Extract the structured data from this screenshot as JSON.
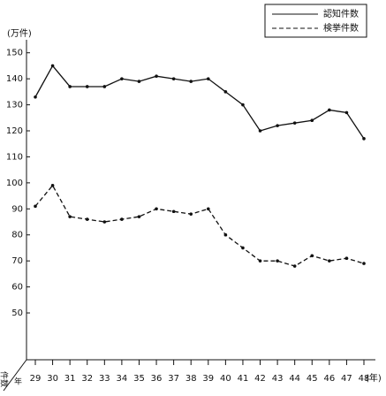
{
  "chart_data": {
    "type": "line",
    "y_unit": "(万件)",
    "x_unit": "(年)",
    "corner_labels": [
      "件数",
      "年"
    ],
    "categories": [
      "29",
      "30",
      "31",
      "32",
      "33",
      "34",
      "35",
      "36",
      "37",
      "38",
      "39",
      "40",
      "41",
      "42",
      "43",
      "44",
      "45",
      "46",
      "47",
      "48"
    ],
    "series": [
      {
        "name": "認知件数",
        "color": "#111111",
        "dash": "solid",
        "values": [
          133,
          145,
          137,
          137,
          137,
          140,
          139,
          141,
          140,
          139,
          140,
          135,
          130,
          120,
          122,
          123,
          124,
          128,
          127,
          117
        ]
      },
      {
        "name": "検挙件数",
        "color": "#111111",
        "dash": "dashed",
        "values": [
          91,
          99,
          87,
          86,
          85,
          86,
          87,
          90,
          89,
          88,
          90,
          80,
          75,
          70,
          70,
          68,
          72,
          70,
          71,
          69
        ]
      }
    ],
    "ylim": [
      32,
      155
    ],
    "yticks": [
      50,
      60,
      70,
      80,
      90,
      100,
      110,
      120,
      130,
      140,
      150
    ],
    "grid": false,
    "legend": "upper right"
  }
}
